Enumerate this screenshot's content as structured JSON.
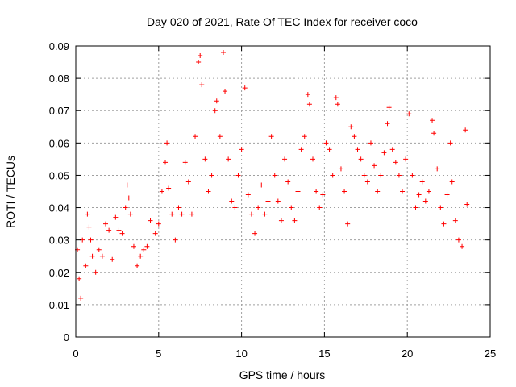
{
  "chart_data": {
    "type": "scatter",
    "title": "Day 020 of 2021, Rate Of TEC Index for receiver coco",
    "xlabel": "GPS time / hours",
    "ylabel": "ROTI / TECUs",
    "xlim": [
      0,
      25
    ],
    "ylim": [
      0,
      0.09
    ],
    "xticks": [
      0,
      5,
      10,
      15,
      20,
      25
    ],
    "xtick_labels": [
      "0",
      "5",
      "10",
      "15",
      "20",
      "25"
    ],
    "yticks": [
      0,
      0.01,
      0.02,
      0.03,
      0.04,
      0.05,
      0.06,
      0.07,
      0.08,
      0.09
    ],
    "ytick_labels": [
      "0",
      "0.01",
      "0.02",
      "0.03",
      "0.04",
      "0.05",
      "0.06",
      "0.07",
      "0.08",
      "0.09"
    ],
    "grid": true,
    "legend": "none",
    "marker": "plus",
    "color": "#ff0000",
    "series": [
      {
        "values": [
          [
            0.1,
            0.027
          ],
          [
            0.2,
            0.018
          ],
          [
            0.3,
            0.012
          ],
          [
            0.4,
            0.03
          ],
          [
            0.6,
            0.022
          ],
          [
            0.7,
            0.038
          ],
          [
            0.8,
            0.034
          ],
          [
            0.9,
            0.03
          ],
          [
            1.0,
            0.025
          ],
          [
            1.2,
            0.02
          ],
          [
            1.4,
            0.027
          ],
          [
            1.6,
            0.025
          ],
          [
            1.8,
            0.035
          ],
          [
            2.0,
            0.033
          ],
          [
            2.2,
            0.024
          ],
          [
            2.4,
            0.037
          ],
          [
            2.6,
            0.033
          ],
          [
            2.8,
            0.032
          ],
          [
            3.0,
            0.04
          ],
          [
            3.1,
            0.047
          ],
          [
            3.2,
            0.043
          ],
          [
            3.3,
            0.038
          ],
          [
            3.5,
            0.028
          ],
          [
            3.7,
            0.022
          ],
          [
            3.9,
            0.025
          ],
          [
            4.1,
            0.027
          ],
          [
            4.3,
            0.028
          ],
          [
            4.5,
            0.036
          ],
          [
            4.8,
            0.032
          ],
          [
            5.0,
            0.035
          ],
          [
            5.2,
            0.045
          ],
          [
            5.4,
            0.054
          ],
          [
            5.5,
            0.06
          ],
          [
            5.6,
            0.046
          ],
          [
            5.8,
            0.038
          ],
          [
            6.0,
            0.03
          ],
          [
            6.2,
            0.04
          ],
          [
            6.4,
            0.038
          ],
          [
            6.6,
            0.054
          ],
          [
            6.8,
            0.048
          ],
          [
            7.0,
            0.038
          ],
          [
            7.2,
            0.062
          ],
          [
            7.4,
            0.085
          ],
          [
            7.5,
            0.087
          ],
          [
            7.6,
            0.078
          ],
          [
            7.8,
            0.055
          ],
          [
            8.0,
            0.045
          ],
          [
            8.2,
            0.05
          ],
          [
            8.4,
            0.07
          ],
          [
            8.5,
            0.073
          ],
          [
            8.7,
            0.062
          ],
          [
            8.9,
            0.088
          ],
          [
            9.0,
            0.076
          ],
          [
            9.2,
            0.055
          ],
          [
            9.4,
            0.042
          ],
          [
            9.6,
            0.04
          ],
          [
            9.8,
            0.05
          ],
          [
            10.0,
            0.058
          ],
          [
            10.2,
            0.077
          ],
          [
            10.4,
            0.044
          ],
          [
            10.6,
            0.038
          ],
          [
            10.8,
            0.032
          ],
          [
            11.0,
            0.04
          ],
          [
            11.2,
            0.047
          ],
          [
            11.4,
            0.038
          ],
          [
            11.6,
            0.042
          ],
          [
            11.8,
            0.062
          ],
          [
            12.0,
            0.05
          ],
          [
            12.2,
            0.042
          ],
          [
            12.4,
            0.036
          ],
          [
            12.6,
            0.055
          ],
          [
            12.8,
            0.048
          ],
          [
            13.0,
            0.04
          ],
          [
            13.2,
            0.036
          ],
          [
            13.4,
            0.045
          ],
          [
            13.6,
            0.058
          ],
          [
            13.8,
            0.062
          ],
          [
            14.0,
            0.075
          ],
          [
            14.1,
            0.072
          ],
          [
            14.3,
            0.055
          ],
          [
            14.5,
            0.045
          ],
          [
            14.7,
            0.04
          ],
          [
            14.9,
            0.044
          ],
          [
            15.1,
            0.06
          ],
          [
            15.3,
            0.058
          ],
          [
            15.5,
            0.05
          ],
          [
            15.7,
            0.074
          ],
          [
            15.8,
            0.072
          ],
          [
            16.0,
            0.052
          ],
          [
            16.2,
            0.045
          ],
          [
            16.4,
            0.035
          ],
          [
            16.6,
            0.065
          ],
          [
            16.8,
            0.062
          ],
          [
            17.0,
            0.058
          ],
          [
            17.2,
            0.055
          ],
          [
            17.4,
            0.05
          ],
          [
            17.6,
            0.048
          ],
          [
            17.8,
            0.06
          ],
          [
            18.0,
            0.053
          ],
          [
            18.2,
            0.045
          ],
          [
            18.4,
            0.05
          ],
          [
            18.6,
            0.057
          ],
          [
            18.8,
            0.066
          ],
          [
            18.9,
            0.071
          ],
          [
            19.1,
            0.058
          ],
          [
            19.3,
            0.054
          ],
          [
            19.5,
            0.05
          ],
          [
            19.7,
            0.045
          ],
          [
            19.9,
            0.055
          ],
          [
            20.1,
            0.069
          ],
          [
            20.3,
            0.05
          ],
          [
            20.5,
            0.04
          ],
          [
            20.7,
            0.044
          ],
          [
            20.9,
            0.048
          ],
          [
            21.1,
            0.042
          ],
          [
            21.3,
            0.045
          ],
          [
            21.5,
            0.067
          ],
          [
            21.6,
            0.063
          ],
          [
            21.8,
            0.052
          ],
          [
            22.0,
            0.04
          ],
          [
            22.2,
            0.035
          ],
          [
            22.4,
            0.044
          ],
          [
            22.6,
            0.06
          ],
          [
            22.7,
            0.048
          ],
          [
            22.9,
            0.036
          ],
          [
            23.1,
            0.03
          ],
          [
            23.3,
            0.028
          ],
          [
            23.5,
            0.064
          ],
          [
            23.6,
            0.041
          ]
        ]
      }
    ]
  }
}
